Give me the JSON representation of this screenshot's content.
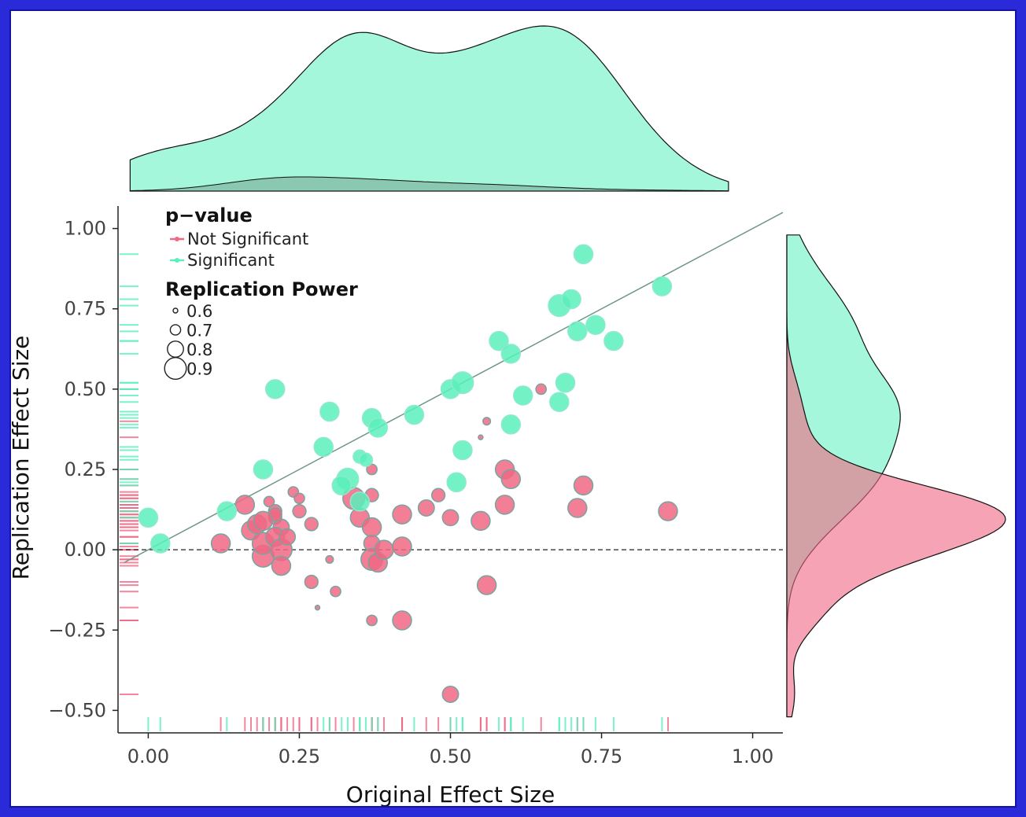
{
  "chart_data": {
    "type": "scatter",
    "title": "",
    "xlabel": "Original Effect Size",
    "ylabel": "Replication Effect Size",
    "xlim": [
      -0.05,
      1.05
    ],
    "ylim": [
      -0.57,
      1.07
    ],
    "x_ticks": [
      "0.00",
      "0.25",
      "0.50",
      "0.75",
      "1.00"
    ],
    "y_ticks": [
      "1.00",
      "0.75",
      "0.50",
      "0.25",
      "0.00",
      "−0.25",
      "−0.50"
    ],
    "reference_line": {
      "slope": 1,
      "intercept": 0
    },
    "zero_line": {
      "y": 0,
      "style": "dashed"
    },
    "grid": false,
    "legend": {
      "position": "top-left",
      "color_title": "p−value",
      "size_title": "Replication Power",
      "color_items": [
        {
          "label": "Not Significant",
          "color": "#f06884"
        },
        {
          "label": "Significant",
          "color": "#59f0bb"
        }
      ],
      "size_items": [
        "0.6",
        "0.7",
        "0.8",
        "0.9"
      ]
    },
    "marginals": {
      "top": "density of original effect size by group",
      "right": "density of replication effect size by group",
      "rugs": true
    },
    "series": [
      {
        "name": "Not Significant",
        "color": "#f06884",
        "points": [
          [
            0.12,
            0.02,
            0.85
          ],
          [
            0.16,
            0.14,
            0.85
          ],
          [
            0.17,
            0.06,
            0.85
          ],
          [
            0.18,
            0.08,
            0.85
          ],
          [
            0.19,
            -0.02,
            0.9
          ],
          [
            0.19,
            0.02,
            0.9
          ],
          [
            0.2,
            0.15,
            0.7
          ],
          [
            0.21,
            0.12,
            0.75
          ],
          [
            0.21,
            0.1,
            0.75
          ],
          [
            0.22,
            0.07,
            0.8
          ],
          [
            0.21,
            0.04,
            0.85
          ],
          [
            0.22,
            0.0,
            0.9
          ],
          [
            0.22,
            -0.05,
            0.85
          ],
          [
            0.21,
            0.11,
            0.75
          ],
          [
            0.23,
            0.04,
            0.8
          ],
          [
            0.24,
            0.18,
            0.7
          ],
          [
            0.25,
            0.16,
            0.7
          ],
          [
            0.27,
            0.08,
            0.75
          ],
          [
            0.27,
            -0.1,
            0.75
          ],
          [
            0.3,
            -0.03,
            0.65
          ],
          [
            0.31,
            -0.13,
            0.7
          ],
          [
            0.28,
            -0.18,
            0.6
          ],
          [
            0.34,
            0.16,
            0.9
          ],
          [
            0.35,
            0.1,
            0.85
          ],
          [
            0.37,
            0.25,
            0.7
          ],
          [
            0.37,
            0.17,
            0.75
          ],
          [
            0.37,
            0.07,
            0.85
          ],
          [
            0.37,
            0.02,
            0.8
          ],
          [
            0.37,
            -0.03,
            0.9
          ],
          [
            0.38,
            -0.04,
            0.85
          ],
          [
            0.39,
            0.0,
            0.85
          ],
          [
            0.37,
            -0.22,
            0.7
          ],
          [
            0.42,
            0.11,
            0.85
          ],
          [
            0.42,
            0.01,
            0.85
          ],
          [
            0.42,
            -0.22,
            0.85
          ],
          [
            0.46,
            0.13,
            0.8
          ],
          [
            0.48,
            0.17,
            0.75
          ],
          [
            0.5,
            0.1,
            0.8
          ],
          [
            0.5,
            -0.45,
            0.8
          ],
          [
            0.55,
            0.35,
            0.6
          ],
          [
            0.56,
            0.4,
            0.65
          ],
          [
            0.55,
            0.09,
            0.85
          ],
          [
            0.56,
            -0.11,
            0.85
          ],
          [
            0.59,
            0.25,
            0.85
          ],
          [
            0.6,
            0.22,
            0.85
          ],
          [
            0.59,
            0.14,
            0.85
          ],
          [
            0.65,
            0.5,
            0.7
          ],
          [
            0.71,
            0.13,
            0.85
          ],
          [
            0.72,
            0.2,
            0.85
          ],
          [
            0.86,
            0.12,
            0.85
          ],
          [
            0.25,
            0.12,
            0.75
          ],
          [
            0.19,
            0.09,
            0.85
          ]
        ]
      },
      {
        "name": "Significant",
        "color": "#59f0bb",
        "points": [
          [
            0.0,
            0.1,
            0.85
          ],
          [
            0.02,
            0.02,
            0.85
          ],
          [
            0.13,
            0.12,
            0.85
          ],
          [
            0.19,
            0.25,
            0.85
          ],
          [
            0.21,
            0.5,
            0.85
          ],
          [
            0.29,
            0.32,
            0.85
          ],
          [
            0.3,
            0.43,
            0.85
          ],
          [
            0.33,
            0.22,
            0.9
          ],
          [
            0.32,
            0.2,
            0.85
          ],
          [
            0.35,
            0.29,
            0.75
          ],
          [
            0.36,
            0.28,
            0.75
          ],
          [
            0.35,
            0.15,
            0.85
          ],
          [
            0.37,
            0.41,
            0.85
          ],
          [
            0.38,
            0.38,
            0.85
          ],
          [
            0.44,
            0.42,
            0.85
          ],
          [
            0.5,
            0.5,
            0.85
          ],
          [
            0.52,
            0.52,
            0.9
          ],
          [
            0.51,
            0.21,
            0.85
          ],
          [
            0.52,
            0.31,
            0.85
          ],
          [
            0.58,
            0.65,
            0.85
          ],
          [
            0.6,
            0.61,
            0.85
          ],
          [
            0.6,
            0.39,
            0.85
          ],
          [
            0.62,
            0.48,
            0.85
          ],
          [
            0.68,
            0.46,
            0.85
          ],
          [
            0.69,
            0.52,
            0.85
          ],
          [
            0.68,
            0.76,
            0.9
          ],
          [
            0.7,
            0.78,
            0.85
          ],
          [
            0.71,
            0.68,
            0.85
          ],
          [
            0.74,
            0.7,
            0.85
          ],
          [
            0.77,
            0.65,
            0.85
          ],
          [
            0.72,
            0.92,
            0.85
          ],
          [
            0.85,
            0.82,
            0.85
          ]
        ]
      }
    ]
  }
}
